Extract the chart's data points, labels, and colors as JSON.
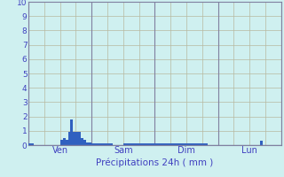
{
  "xlabel": "Précipitations 24h ( mm )",
  "ylim": [
    0,
    10
  ],
  "yticks": [
    0,
    1,
    2,
    3,
    4,
    5,
    6,
    7,
    8,
    9,
    10
  ],
  "background_color": "#cff0f0",
  "plot_bg_color": "#cff0f0",
  "bar_color": "#3060c0",
  "grid_color": "#b8b8a0",
  "day_line_color": "#8080a0",
  "xlabel_color": "#4040c0",
  "tick_label_color": "#4040c0",
  "day_labels": [
    "Ven",
    "Sam",
    "Dim",
    "Lun"
  ],
  "n_steps": 96,
  "day_positions": [
    0,
    24,
    48,
    72
  ],
  "bar_values": [
    0.12,
    0.12,
    0.0,
    0.0,
    0.0,
    0.0,
    0.0,
    0.0,
    0.0,
    0.0,
    0.0,
    0.0,
    0.4,
    0.5,
    0.4,
    0.9,
    1.8,
    0.9,
    0.9,
    0.9,
    0.5,
    0.4,
    0.2,
    0.2,
    0.12,
    0.12,
    0.12,
    0.12,
    0.12,
    0.15,
    0.12,
    0.12,
    0.0,
    0.0,
    0.0,
    0.0,
    0.12,
    0.12,
    0.12,
    0.12,
    0.12,
    0.12,
    0.12,
    0.12,
    0.12,
    0.12,
    0.12,
    0.12,
    0.12,
    0.12,
    0.12,
    0.12,
    0.12,
    0.12,
    0.12,
    0.12,
    0.12,
    0.12,
    0.12,
    0.12,
    0.12,
    0.12,
    0.12,
    0.12,
    0.12,
    0.12,
    0.12,
    0.12,
    0.0,
    0.0,
    0.0,
    0.0,
    0.0,
    0.0,
    0.0,
    0.0,
    0.0,
    0.0,
    0.0,
    0.0,
    0.0,
    0.0,
    0.0,
    0.0,
    0.0,
    0.0,
    0.0,
    0.0,
    0.3,
    0.0,
    0.0,
    0.0,
    0.0,
    0.0,
    0.0,
    0.0
  ],
  "figsize": [
    3.2,
    2.0
  ],
  "dpi": 100
}
